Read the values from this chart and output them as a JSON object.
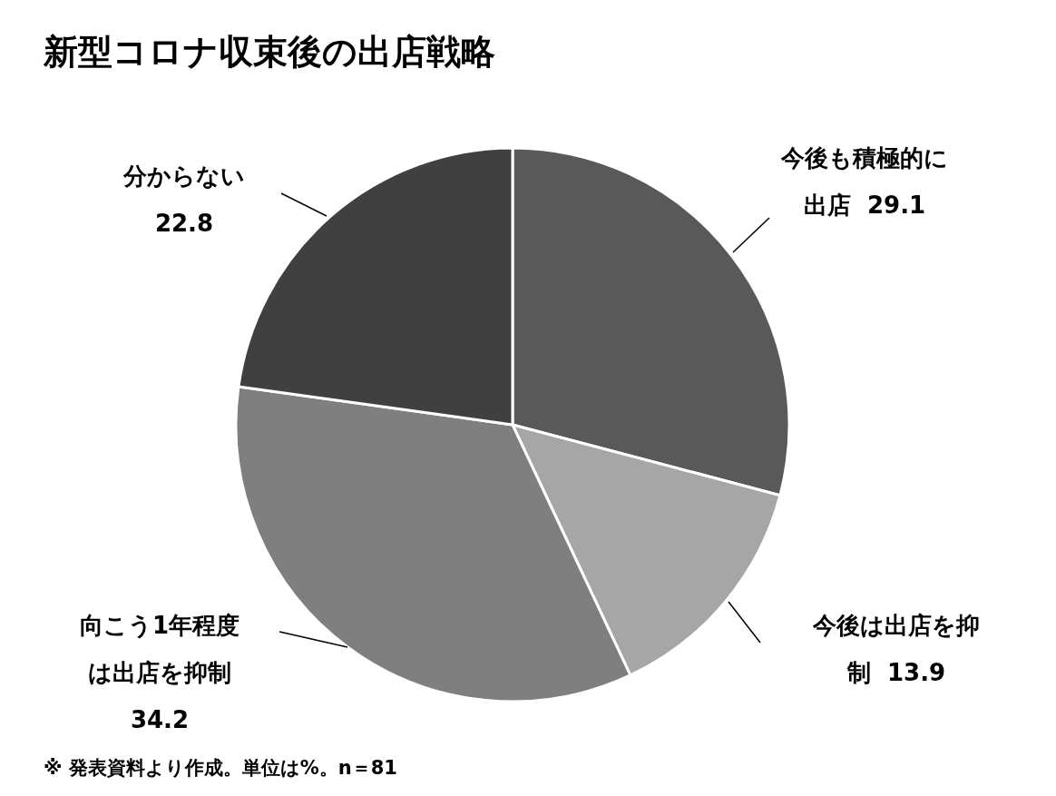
{
  "chart_data": {
    "type": "pie",
    "title": "新型コロナ収束後の出店戦略",
    "categories": [
      "今後も積極的に出店",
      "今後は出店を抑制",
      "向こう1年程度は出店を抑制",
      "分からない"
    ],
    "values": [
      29.1,
      13.9,
      34.2,
      22.8
    ],
    "colors": [
      "#595959",
      "#a6a6a6",
      "#7f7f7f",
      "#404040"
    ],
    "data_labels": true,
    "annotations": [
      "※  発表資料より作成。単位は%。n＝81"
    ]
  }
}
